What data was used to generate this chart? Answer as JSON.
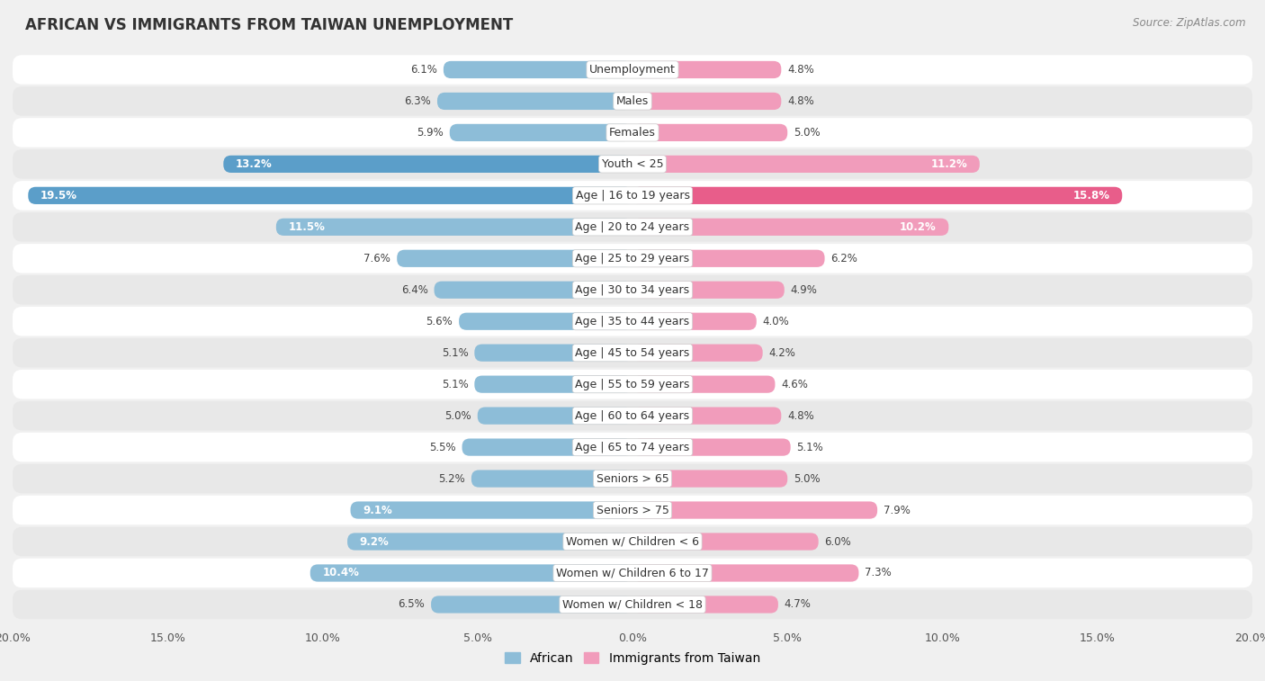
{
  "title": "AFRICAN VS IMMIGRANTS FROM TAIWAN UNEMPLOYMENT",
  "source": "Source: ZipAtlas.com",
  "categories": [
    "Unemployment",
    "Males",
    "Females",
    "Youth < 25",
    "Age | 16 to 19 years",
    "Age | 20 to 24 years",
    "Age | 25 to 29 years",
    "Age | 30 to 34 years",
    "Age | 35 to 44 years",
    "Age | 45 to 54 years",
    "Age | 55 to 59 years",
    "Age | 60 to 64 years",
    "Age | 65 to 74 years",
    "Seniors > 65",
    "Seniors > 75",
    "Women w/ Children < 6",
    "Women w/ Children 6 to 17",
    "Women w/ Children < 18"
  ],
  "african": [
    6.1,
    6.3,
    5.9,
    13.2,
    19.5,
    11.5,
    7.6,
    6.4,
    5.6,
    5.1,
    5.1,
    5.0,
    5.5,
    5.2,
    9.1,
    9.2,
    10.4,
    6.5
  ],
  "taiwan": [
    4.8,
    4.8,
    5.0,
    11.2,
    15.8,
    10.2,
    6.2,
    4.9,
    4.0,
    4.2,
    4.6,
    4.8,
    5.1,
    5.0,
    7.9,
    6.0,
    7.3,
    4.7
  ],
  "african_color": "#8dbdd8",
  "taiwan_color": "#f19cbb",
  "african_highlight_color": "#5b9ec9",
  "taiwan_highlight_color": "#e85d8a",
  "bg_color": "#f0f0f0",
  "row_color_white": "#ffffff",
  "row_color_gray": "#e8e8e8",
  "max_val": 20.0,
  "title_fontsize": 12,
  "label_fontsize": 9,
  "value_fontsize": 8.5,
  "legend_fontsize": 10
}
